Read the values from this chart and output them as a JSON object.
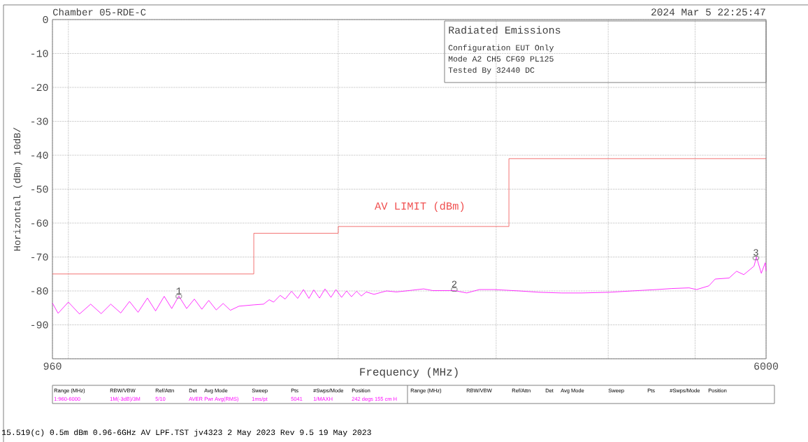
{
  "chart_data": {
    "type": "line",
    "title": "Chamber 05-RDE-C",
    "xlabel": "Frequency (MHz)",
    "ylabel": "Horizontal (dBm) 10dB/",
    "log": "x",
    "grid": true,
    "xlim": [
      960,
      6000
    ],
    "xticks": [
      960,
      {
        "value": 1000,
        "label": null
      },
      {
        "value": 2000,
        "label": null
      },
      {
        "value": 3000,
        "label": null
      },
      {
        "value": 4000,
        "label": null
      },
      {
        "value": 5000,
        "label": null
      },
      6000
    ],
    "ylim": [
      -100,
      0
    ],
    "yticks": [
      {
        "value": -100,
        "label": null
      },
      -90,
      -80,
      -70,
      -60,
      -50,
      -40,
      -30,
      -20,
      -10,
      0
    ],
    "series": [
      {
        "color": "#ff00ff",
        "x": [
          960,
          974,
          1000,
          1029,
          1059,
          1088,
          1115,
          1144,
          1170,
          1196,
          1225,
          1251,
          1279,
          1304,
          1328,
          1355,
          1382,
          1409,
          1434,
          1462,
          1488,
          1516,
          1550,
          1611,
          1651,
          1675,
          1694,
          1723,
          1745,
          1774,
          1802,
          1829,
          1855,
          1878,
          1906,
          1933,
          1963,
          1988,
          2017,
          2043,
          2069,
          2096,
          2122,
          2149,
          2192,
          2264,
          2322,
          2398,
          2490,
          2549,
          2694,
          2782,
          2873,
          2984,
          3184,
          3348,
          3550,
          3736,
          4011,
          4250,
          4527,
          4707,
          4923,
          5019,
          5180,
          5264,
          5456,
          5562,
          5666,
          5817,
          5853,
          5927,
          5987,
          6000
        ],
        "values": [
          -83.6,
          -86.6,
          -83.3,
          -86.8,
          -83.9,
          -86.7,
          -83.9,
          -86.5,
          -83.1,
          -86.3,
          -82.1,
          -85.9,
          -81.6,
          -85.2,
          -81.5,
          -85.2,
          -82.4,
          -85.4,
          -82.8,
          -85.6,
          -83.7,
          -85.7,
          -84.5,
          -84.1,
          -83.9,
          -82.6,
          -83.3,
          -81.3,
          -82.4,
          -80.1,
          -82.2,
          -79.6,
          -82.2,
          -79.7,
          -82.1,
          -79.4,
          -81.9,
          -79.6,
          -81.9,
          -80.0,
          -81.7,
          -80.1,
          -81.5,
          -80.3,
          -81.0,
          -80.0,
          -80.3,
          -79.9,
          -79.4,
          -79.9,
          -79.9,
          -80.6,
          -79.6,
          -79.6,
          -80.0,
          -80.4,
          -80.6,
          -80.6,
          -80.4,
          -80.0,
          -79.6,
          -79.3,
          -79.1,
          -79.6,
          -78.5,
          -76.5,
          -76.2,
          -74.2,
          -75.2,
          -72.7,
          -70.0,
          -74.8,
          -71.7,
          -74.1
        ]
      },
      {
        "type": "step",
        "name": "AV LIMIT (dBm)",
        "color": "#f05050",
        "x": [
          960,
          1610,
          2000,
          3100,
          6000
        ],
        "values": [
          -75,
          -63,
          -61,
          -41,
          -41
        ]
      }
    ],
    "annotations": [
      "2024 Mar 5   22:25:47",
      "Radiated Emissions",
      "Configuration EUT Only",
      "Mode A2 CH5 CFG9 PL125",
      "Tested By 32440 DC",
      "Range (MHz)",
      "RBW/VBW",
      "Ref/Attn",
      "Det",
      "Avg Mode",
      "Sweep",
      "Pts",
      "#Swps/Mode",
      "Position",
      "1:960-6000",
      "1M(-3dB)/3M",
      "5/10",
      "AVER",
      "Pwr Avg(RMS)",
      "1ms/pt",
      "5041",
      "1/MAXH",
      "242 degs 155 cm H",
      "Range (MHz)",
      "RBW/VBW",
      "Ref/Attn",
      "Det",
      "Avg Mode",
      "Sweep",
      "Pts",
      "#Swps/Mode",
      "Position",
      "15.519(c) 0.5m dBm 0.96-6GHz AV LPF.TST jv4323  2 May 2023 Rev 9.5 19 May 2023",
      {
        "text": "1",
        "x": 1328,
        "y": -81.6
      },
      {
        "text": "2",
        "x": 2694,
        "y": -79.6
      },
      {
        "text": "3",
        "x": 5845,
        "y": -70.3
      }
    ]
  }
}
